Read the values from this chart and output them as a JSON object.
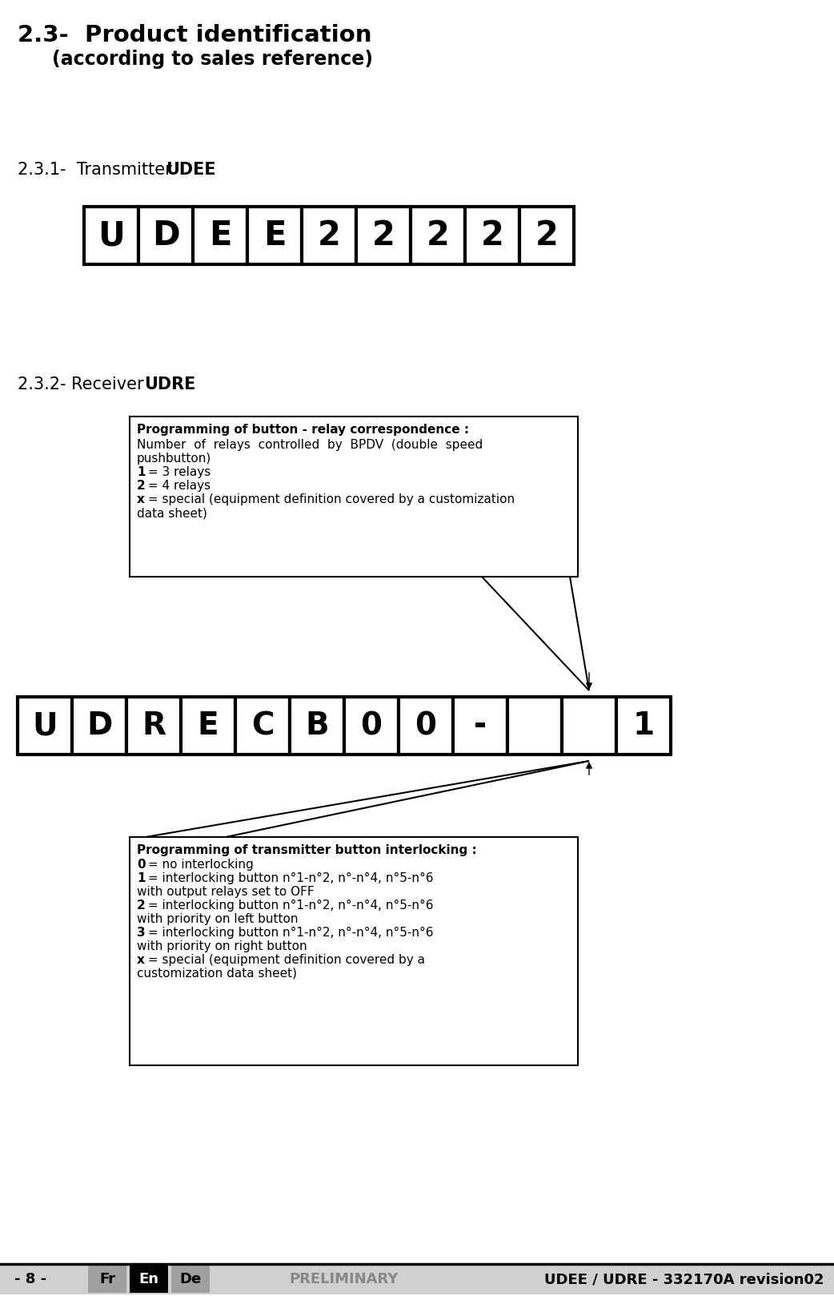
{
  "title1": "2.3-  Product identification",
  "title2": "(according to sales reference)",
  "section1_label": "2.3.1-  Transmitter ",
  "section1_bold": "UDEE",
  "udee_chars": [
    "U",
    "D",
    "E",
    "E",
    "2",
    "2",
    "2",
    "2",
    "2"
  ],
  "section2_label": "2.3.2- Receiver ",
  "section2_bold": "UDRE",
  "udre_chars": [
    "U",
    "D",
    "R",
    "E",
    "C",
    "B",
    "0",
    "0",
    "-",
    " ",
    " ",
    "1"
  ],
  "box1_title": "Programming of button - relay correspondence :",
  "box1_line0": "Number  of  relays  controlled  by  BPDV  (double  speed",
  "box1_line1": "pushbutton)",
  "box1_line2_b": "1",
  "box1_line2_r": " = 3 relays",
  "box1_line3_b": "2",
  "box1_line3_r": " = 4 relays",
  "box1_line4_b": "x",
  "box1_line4_r": " = special (equipment definition covered by a customization",
  "box1_line5": "data sheet)",
  "box2_title": "Programming of transmitter button interlocking :",
  "box2_line0_b": "0",
  "box2_line0_r": " = no interlocking",
  "box2_line1_b": "1",
  "box2_line1_r": " = interlocking button n°1-n°2, n°-n°4, n°5-n°6",
  "box2_line2": "with output relays set to OFF",
  "box2_line3_b": "2",
  "box2_line3_r": " = interlocking button n°1-n°2, n°-n°4, n°5-n°6",
  "box2_line4": "with priority on left button",
  "box2_line5_b": "3",
  "box2_line5_r": " = interlocking button n°1-n°2, n°-n°4, n°5-n°6",
  "box2_line6": "with priority on right button",
  "box2_line7_b": "x",
  "box2_line7_r": " = special (equipment definition covered by a",
  "box2_line8": "customization data sheet)",
  "footer_page": "- 8 -",
  "footer_fr": "Fr",
  "footer_en": "En",
  "footer_de": "De",
  "footer_prelim": "PRELIMINARY",
  "footer_ref": "UDEE / UDRE - 332170A revision02",
  "bg_color": "#ffffff"
}
